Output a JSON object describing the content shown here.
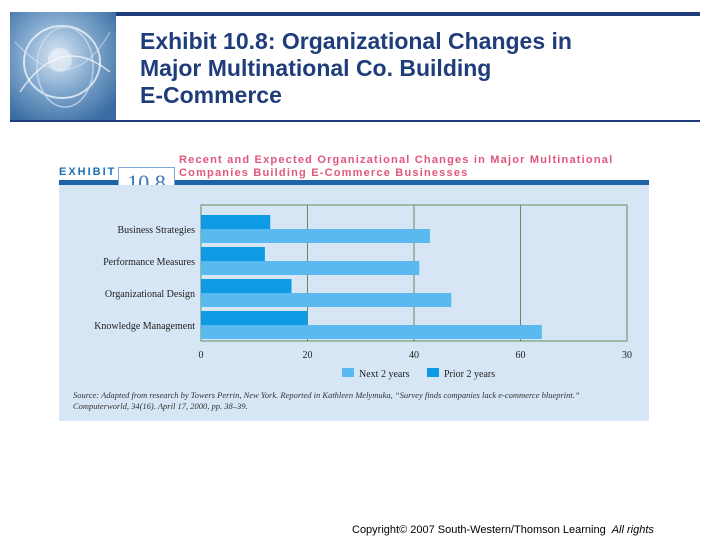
{
  "slide": {
    "title_lines": [
      "Exhibit 10.8: Organizational Changes in",
      "Major Multinational Co. Building",
      "E-Commerce"
    ],
    "copyright": "Copyright© 2007 South-Western/Thomson Learning",
    "rights": "All rights"
  },
  "exhibit": {
    "label": "EXHIBIT",
    "number": "10.8",
    "title_lines": [
      "Recent and Expected Organizational Changes in Major Multinational",
      "Companies Building E-Commerce Businesses"
    ],
    "source_lines": [
      "Source: Adapted from research by Towers Perrin, New York. Reported in Kathleen Melymuka, “Survey finds companies lack e-commerce blueprint.”",
      "Computerworld, 34(16). April 17, 2000, pp. 38–39."
    ]
  },
  "colors": {
    "prior": "#0f9ae6",
    "next": "#5ab9ee",
    "panel": "#d6e6f4",
    "grid": "#5d8f5f",
    "accent": "#1d63a8",
    "title": "#1f3d7a"
  },
  "chart_data": {
    "type": "bar",
    "orientation": "horizontal",
    "categories": [
      "Business Strategies",
      "Performance Measures",
      "Organizational Design",
      "Knowledge Management"
    ],
    "series": [
      {
        "name": "Prior 2 years",
        "values": [
          13,
          12,
          17,
          20
        ]
      },
      {
        "name": "Next 2 years",
        "values": [
          43,
          41,
          47,
          64
        ]
      }
    ],
    "x_ticks": [
      "0",
      "20",
      "40",
      "60",
      "30"
    ],
    "xlim": [
      0,
      80
    ],
    "legend_position": "bottom",
    "grid": true
  }
}
